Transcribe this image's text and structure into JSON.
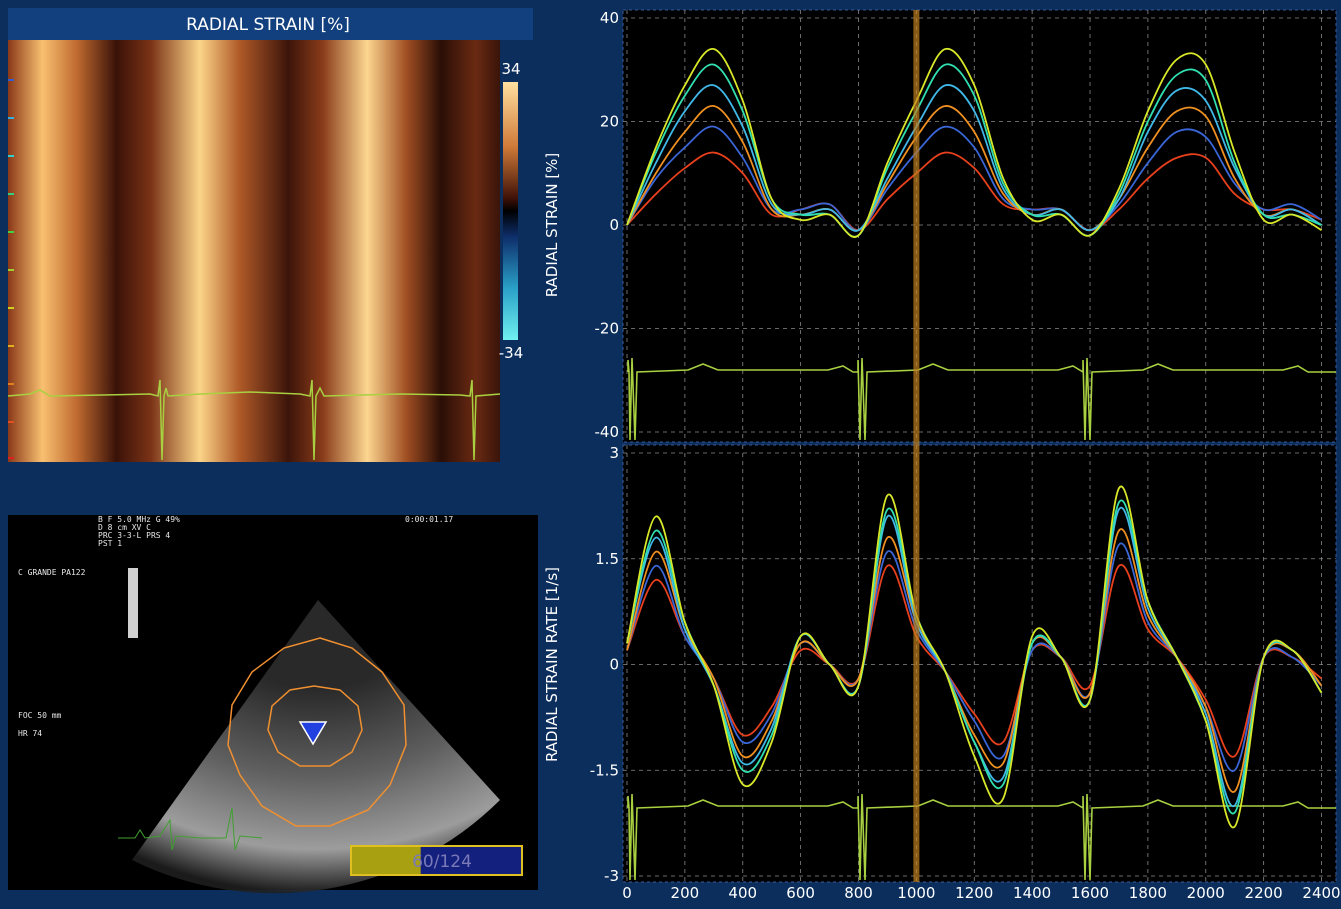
{
  "heatmap": {
    "title": "RADIAL STRAIN [%]",
    "colorbar_max": 34,
    "colorbar_min": -34
  },
  "echo": {
    "settings": [
      "B F  5.0 MHz G  49%",
      "D    8  cm  XV   C",
      "PRC  3-3-L  PRS  4",
      "PST 1"
    ],
    "time": "0:00:01.17",
    "probe": "C GRANDE PA122",
    "focus": "FOC  50 mm",
    "heart_rate": "HR  74",
    "progress": {
      "label": "60/124",
      "value": 60,
      "total": 124
    }
  },
  "cursor_x": 1000,
  "chart_data": [
    {
      "type": "line",
      "ylabel": "RADIAL STRAIN [%]",
      "x": [
        0,
        100,
        200,
        300,
        400,
        500,
        600,
        700,
        800,
        900,
        1000,
        1100,
        1200,
        1300,
        1400,
        1500,
        1600,
        1700,
        1800,
        1900,
        2000,
        2100,
        2200,
        2300,
        2400
      ],
      "xlim": [
        0,
        2450
      ],
      "ylim": [
        -40,
        40
      ],
      "yticks": [
        40,
        20,
        0,
        -20,
        -40
      ],
      "grid": true,
      "series": [
        {
          "color": "#e8401c",
          "values": [
            0,
            6,
            11,
            14,
            10,
            2,
            3,
            4,
            -1,
            5,
            10,
            14,
            11,
            4,
            3,
            3,
            -1,
            3,
            9,
            13,
            13,
            6,
            3,
            3,
            1
          ]
        },
        {
          "color": "#3a66d8",
          "values": [
            0,
            9,
            15,
            19,
            13,
            3,
            3,
            4,
            -1,
            7,
            14,
            19,
            15,
            5,
            3,
            3,
            -1,
            4,
            12,
            18,
            17,
            8,
            3,
            4,
            1
          ]
        },
        {
          "color": "#f09020",
          "values": [
            0,
            10,
            18,
            23,
            16,
            3,
            2,
            3,
            -1,
            8,
            17,
            23,
            18,
            6,
            2,
            3,
            -1,
            5,
            15,
            22,
            21,
            9,
            2,
            3,
            0
          ]
        },
        {
          "color": "#40b8e8",
          "values": [
            0,
            12,
            22,
            27,
            19,
            4,
            2,
            3,
            -1,
            9,
            19,
            27,
            22,
            7,
            2,
            3,
            -1,
            5,
            18,
            26,
            24,
            11,
            2,
            3,
            0
          ]
        },
        {
          "color": "#30e0b0",
          "values": [
            0,
            14,
            25,
            31,
            22,
            5,
            2,
            2,
            -2,
            11,
            22,
            31,
            25,
            8,
            2,
            2,
            -2,
            6,
            20,
            29,
            28,
            12,
            2,
            2,
            0
          ]
        },
        {
          "color": "#d8e828",
          "values": [
            0,
            15,
            27,
            34,
            24,
            5,
            1,
            2,
            -2,
            12,
            24,
            34,
            27,
            9,
            1,
            2,
            -2,
            7,
            22,
            32,
            31,
            14,
            1,
            2,
            -1
          ]
        }
      ]
    },
    {
      "type": "line",
      "ylabel": "RADIAL STRAIN RATE [1/s]",
      "x": [
        0,
        100,
        200,
        300,
        400,
        500,
        600,
        700,
        800,
        900,
        1000,
        1100,
        1200,
        1300,
        1400,
        1500,
        1600,
        1700,
        1800,
        1900,
        2000,
        2100,
        2200,
        2300,
        2400
      ],
      "xlim": [
        0,
        2450
      ],
      "ylim": [
        -3,
        3
      ],
      "xticks": [
        0,
        200,
        400,
        600,
        800,
        1000,
        1200,
        1400,
        1600,
        1800,
        2000,
        2200,
        2400
      ],
      "yticks": [
        3,
        1.5,
        0,
        -1.5,
        -3
      ],
      "grid": true,
      "series": [
        {
          "color": "#e8401c",
          "values": [
            0.2,
            1.2,
            0.4,
            -0.2,
            -1,
            -0.6,
            0.2,
            0,
            -0.2,
            1.4,
            0.4,
            -0.1,
            -0.7,
            -1.1,
            0.2,
            0.1,
            -0.3,
            1.4,
            0.5,
            0.1,
            -0.5,
            -1.3,
            0.1,
            0.1,
            -0.2
          ]
        },
        {
          "color": "#3a66d8",
          "values": [
            0.2,
            1.4,
            0.4,
            -0.2,
            -1.1,
            -0.7,
            0.3,
            0,
            -0.2,
            1.6,
            0.5,
            -0.1,
            -0.8,
            -1.3,
            0.2,
            0.1,
            -0.4,
            1.7,
            0.6,
            0.1,
            -0.6,
            -1.5,
            0.1,
            0.1,
            -0.3
          ]
        },
        {
          "color": "#f09020",
          "values": [
            0.2,
            1.6,
            0.5,
            -0.2,
            -1.3,
            -0.8,
            0.3,
            0,
            -0.2,
            1.8,
            0.6,
            -0.1,
            -1,
            -1.4,
            0.3,
            0.1,
            -0.4,
            1.9,
            0.7,
            0.1,
            -0.6,
            -1.8,
            0.1,
            0.2,
            -0.3
          ]
        },
        {
          "color": "#40b8e8",
          "values": [
            0.3,
            1.8,
            0.5,
            -0.3,
            -1.4,
            -0.9,
            0.4,
            0,
            -0.3,
            2.1,
            0.6,
            -0.1,
            -1.1,
            -1.6,
            0.3,
            0.1,
            -0.5,
            2.2,
            0.8,
            0.1,
            -0.7,
            -2,
            0.1,
            0.2,
            -0.4
          ]
        },
        {
          "color": "#30e0b0",
          "values": [
            0.3,
            1.9,
            0.6,
            -0.3,
            -1.5,
            -1,
            0.4,
            0,
            -0.3,
            2.2,
            0.7,
            -0.1,
            -1.1,
            -1.7,
            0.3,
            0.1,
            -0.5,
            2.3,
            0.9,
            0.1,
            -0.8,
            -2.1,
            0.1,
            0.2,
            -0.4
          ]
        },
        {
          "color": "#d8e828",
          "values": [
            0.3,
            2.1,
            0.6,
            -0.3,
            -1.7,
            -1.1,
            0.4,
            0,
            -0.3,
            2.4,
            0.7,
            -0.1,
            -1.3,
            -1.9,
            0.4,
            0.1,
            -0.5,
            2.5,
            0.9,
            0.1,
            -0.8,
            -2.3,
            0.1,
            0.2,
            -0.4
          ]
        }
      ]
    }
  ]
}
